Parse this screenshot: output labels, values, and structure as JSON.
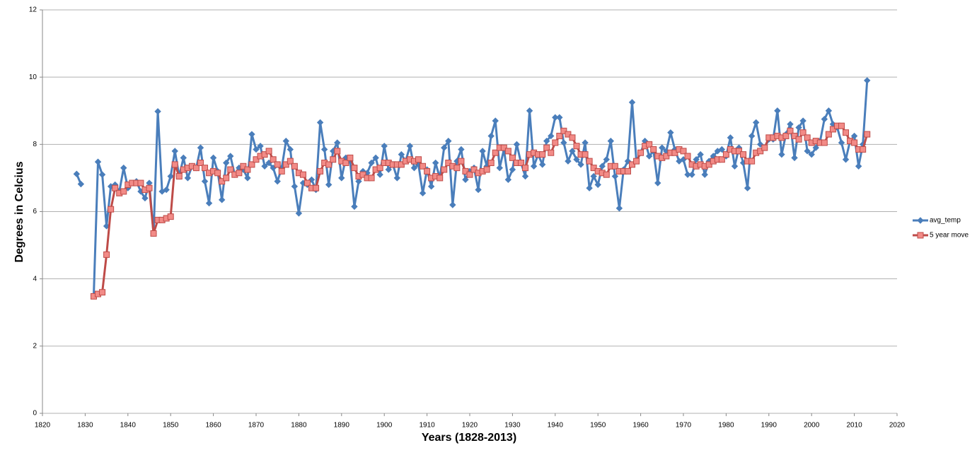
{
  "chart_data": {
    "type": "line",
    "x_label": "Years (1828-2013)",
    "y_label": "Degrees in Celcius",
    "x": [
      1828,
      1829,
      1830,
      1831,
      1832,
      1833,
      1834,
      1835,
      1836,
      1837,
      1838,
      1839,
      1840,
      1841,
      1842,
      1843,
      1844,
      1845,
      1846,
      1847,
      1848,
      1849,
      1850,
      1851,
      1852,
      1853,
      1854,
      1855,
      1856,
      1857,
      1858,
      1859,
      1860,
      1861,
      1862,
      1863,
      1864,
      1865,
      1866,
      1867,
      1868,
      1869,
      1870,
      1871,
      1872,
      1873,
      1874,
      1875,
      1876,
      1877,
      1878,
      1879,
      1880,
      1881,
      1882,
      1883,
      1884,
      1885,
      1886,
      1887,
      1888,
      1889,
      1890,
      1891,
      1892,
      1893,
      1894,
      1895,
      1896,
      1897,
      1898,
      1899,
      1900,
      1901,
      1902,
      1903,
      1904,
      1905,
      1906,
      1907,
      1908,
      1909,
      1910,
      1911,
      1912,
      1913,
      1914,
      1915,
      1916,
      1917,
      1918,
      1919,
      1920,
      1921,
      1922,
      1923,
      1924,
      1925,
      1926,
      1927,
      1928,
      1929,
      1930,
      1931,
      1932,
      1933,
      1934,
      1935,
      1936,
      1937,
      1938,
      1939,
      1940,
      1941,
      1942,
      1943,
      1944,
      1945,
      1946,
      1947,
      1948,
      1949,
      1950,
      1951,
      1952,
      1953,
      1954,
      1955,
      1956,
      1957,
      1958,
      1959,
      1960,
      1961,
      1962,
      1963,
      1964,
      1965,
      1966,
      1967,
      1968,
      1969,
      1970,
      1971,
      1972,
      1973,
      1974,
      1975,
      1976,
      1977,
      1978,
      1979,
      1980,
      1981,
      1982,
      1983,
      1984,
      1985,
      1986,
      1987,
      1988,
      1989,
      1990,
      1991,
      1992,
      1993,
      1994,
      1995,
      1996,
      1997,
      1998,
      1999,
      2000,
      2001,
      2002,
      2003,
      2004,
      2005,
      2006,
      2007,
      2008,
      2009,
      2010,
      2011,
      2012,
      2013
    ],
    "series": [
      {
        "name": "avg_temp",
        "color": "#4a7ebb",
        "marker": "diamond",
        "values": [
          7.12,
          6.82,
          null,
          null,
          3.5,
          7.48,
          7.1,
          5.57,
          6.75,
          6.8,
          6.6,
          7.3,
          6.7,
          6.85,
          6.9,
          6.6,
          6.4,
          6.85,
          5.35,
          8.98,
          6.6,
          6.65,
          7.05,
          7.8,
          7.05,
          7.6,
          7.0,
          7.35,
          7.3,
          7.9,
          6.9,
          6.25,
          7.6,
          7.2,
          6.35,
          7.45,
          7.65,
          7.1,
          7.3,
          7.25,
          7.0,
          8.3,
          7.85,
          7.95,
          7.35,
          7.45,
          7.3,
          6.9,
          7.3,
          8.1,
          7.85,
          6.75,
          5.95,
          6.85,
          6.8,
          6.95,
          6.65,
          8.65,
          7.85,
          6.8,
          7.8,
          8.05,
          7.0,
          7.6,
          7.5,
          6.15,
          6.9,
          7.2,
          7.15,
          7.45,
          7.6,
          7.1,
          7.95,
          7.25,
          7.4,
          7.0,
          7.7,
          7.5,
          7.95,
          7.3,
          7.4,
          6.55,
          7.25,
          6.75,
          7.45,
          7.0,
          7.9,
          8.1,
          6.2,
          7.5,
          7.85,
          6.95,
          7.2,
          7.3,
          6.65,
          7.8,
          7.35,
          8.25,
          8.7,
          7.3,
          7.85,
          6.95,
          7.25,
          8.0,
          7.45,
          7.05,
          9.0,
          7.35,
          7.7,
          7.4,
          8.1,
          8.25,
          8.8,
          8.8,
          8.05,
          7.5,
          7.8,
          7.55,
          7.4,
          8.05,
          6.7,
          7.05,
          6.8,
          7.35,
          7.55,
          8.1,
          7.05,
          6.1,
          7.25,
          7.5,
          9.25,
          7.5,
          7.75,
          8.1,
          7.65,
          7.8,
          6.85,
          7.9,
          7.8,
          8.35,
          7.85,
          7.5,
          7.55,
          7.1,
          7.1,
          7.55,
          7.7,
          7.1,
          7.5,
          7.65,
          7.8,
          7.85,
          7.65,
          8.2,
          7.35,
          7.9,
          7.45,
          6.7,
          8.25,
          8.65,
          8.0,
          7.9,
          8.15,
          8.15,
          9.0,
          7.7,
          8.3,
          8.6,
          7.6,
          8.5,
          8.7,
          7.8,
          7.7,
          7.9,
          8.1,
          8.75,
          9.0,
          8.6,
          8.5,
          8.05,
          7.55,
          8.1,
          8.25,
          7.35,
          8.0,
          9.9
        ]
      },
      {
        "name": "5 year move",
        "color": "#be4b48",
        "marker": "square",
        "values": [
          null,
          null,
          null,
          null,
          3.48,
          3.55,
          3.6,
          4.72,
          6.07,
          6.7,
          6.55,
          6.6,
          6.8,
          6.85,
          6.85,
          6.85,
          6.65,
          6.7,
          5.35,
          5.75,
          5.75,
          5.8,
          5.85,
          7.4,
          7.05,
          7.25,
          7.3,
          7.35,
          7.3,
          7.45,
          7.3,
          7.15,
          7.2,
          7.15,
          6.9,
          7.0,
          7.25,
          7.1,
          7.15,
          7.35,
          7.25,
          7.4,
          7.55,
          7.65,
          7.7,
          7.8,
          7.55,
          7.4,
          7.2,
          7.4,
          7.5,
          7.35,
          7.15,
          7.1,
          6.85,
          6.7,
          6.7,
          7.2,
          7.45,
          7.4,
          7.55,
          7.8,
          7.5,
          7.45,
          7.6,
          7.3,
          7.05,
          7.1,
          7.0,
          7.0,
          7.25,
          7.3,
          7.45,
          7.45,
          7.4,
          7.4,
          7.4,
          7.5,
          7.55,
          7.5,
          7.55,
          7.35,
          7.2,
          7.0,
          7.05,
          7.0,
          7.25,
          7.45,
          7.35,
          7.3,
          7.5,
          7.2,
          7.1,
          7.25,
          7.15,
          7.2,
          7.25,
          7.45,
          7.75,
          7.9,
          7.9,
          7.8,
          7.6,
          7.45,
          7.45,
          7.3,
          7.7,
          7.75,
          7.7,
          7.7,
          7.9,
          7.75,
          8.05,
          8.25,
          8.4,
          8.3,
          8.2,
          7.95,
          7.7,
          7.7,
          7.5,
          7.3,
          7.2,
          7.15,
          7.1,
          7.35,
          7.35,
          7.2,
          7.2,
          7.2,
          7.4,
          7.5,
          7.75,
          7.95,
          8.0,
          7.85,
          7.65,
          7.6,
          7.65,
          7.75,
          7.75,
          7.85,
          7.8,
          7.65,
          7.4,
          7.35,
          7.4,
          7.35,
          7.4,
          7.5,
          7.55,
          7.55,
          7.7,
          7.85,
          7.8,
          7.8,
          7.7,
          7.5,
          7.5,
          7.75,
          7.8,
          7.9,
          8.2,
          8.2,
          8.25,
          8.2,
          8.25,
          8.4,
          8.25,
          8.15,
          8.35,
          8.2,
          8.05,
          8.1,
          8.05,
          8.05,
          8.3,
          8.45,
          8.55,
          8.55,
          8.35,
          8.1,
          8.05,
          7.85,
          7.85,
          8.3
        ]
      }
    ],
    "xlim": [
      1820,
      2020
    ],
    "xticks": [
      1820,
      1830,
      1840,
      1850,
      1860,
      1870,
      1880,
      1890,
      1900,
      1910,
      1920,
      1930,
      1940,
      1950,
      1960,
      1970,
      1980,
      1990,
      2000,
      2010,
      2020
    ],
    "ylim": [
      0,
      12
    ],
    "yticks": [
      0,
      2,
      4,
      6,
      8,
      10,
      12
    ],
    "grid": true,
    "legend": "right"
  }
}
